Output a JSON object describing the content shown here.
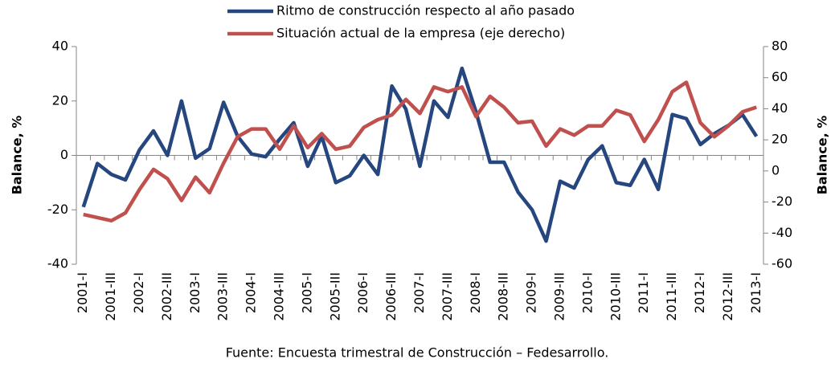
{
  "chart_data": {
    "type": "line",
    "caption": "Fuente: Encuesta trimestral de Construcción – Fedesarrollo.",
    "ylabel": "Balance, %",
    "y2label": "Balance, %",
    "categories": [
      "2001-I",
      null,
      "2001-III",
      null,
      "2002-I",
      null,
      "2002-III",
      null,
      "2003-I",
      null,
      "2003-III",
      null,
      "2004-I",
      null,
      "2004-III",
      null,
      "2005-I",
      null,
      "2005-III",
      null,
      "2006-I",
      null,
      "2006-III",
      null,
      "2007-I",
      null,
      "2007-III",
      null,
      "2008-I",
      null,
      "2008-III",
      null,
      "2009-I",
      null,
      "2009-III",
      null,
      "2010-I",
      null,
      "2010-III",
      null,
      "2011-I",
      null,
      "2011-III",
      null,
      "2012-I",
      null,
      "2012-III",
      null,
      "2013-I"
    ],
    "series": [
      {
        "name": "Ritmo de construcción respecto al año pasado",
        "color": "#25467e",
        "axis": "y",
        "values": [
          -19,
          -3,
          -7,
          -9,
          2,
          9,
          0,
          20,
          -1,
          2.5,
          19.5,
          7,
          0.5,
          -0.5,
          6,
          12,
          -4,
          7,
          -10,
          -7.5,
          0,
          -7,
          25.5,
          17,
          -4,
          20,
          14,
          32,
          16,
          -2.5,
          -2.5,
          -13.5,
          -20,
          -31.5,
          -9.5,
          -12,
          -1.5,
          3.5,
          -10,
          -11,
          -1.5,
          -12.5,
          15,
          13.5,
          4,
          8,
          11,
          15,
          7
        ]
      },
      {
        "name": "Situación actual de la empresa (eje derecho)",
        "color": "#c0504d",
        "axis": "y2",
        "values": [
          -28,
          -30,
          -32,
          -27,
          -12,
          1,
          -5,
          -19,
          -4,
          -14,
          5,
          22,
          27,
          27,
          14,
          29,
          15,
          24,
          14,
          16,
          28,
          33,
          36,
          46,
          37,
          54,
          51,
          54,
          35,
          48,
          41,
          31,
          32,
          16,
          27,
          23,
          29,
          29,
          39,
          36,
          19,
          33,
          51,
          57,
          31,
          22,
          29,
          38,
          41
        ]
      }
    ],
    "ylim": [
      -40,
      40
    ],
    "yticks": [
      -40,
      -20,
      0,
      20,
      40
    ],
    "y2lim": [
      -60,
      80
    ],
    "y2ticks": [
      -60,
      -40,
      -20,
      0,
      20,
      40,
      60,
      80
    ],
    "legend": "top"
  }
}
